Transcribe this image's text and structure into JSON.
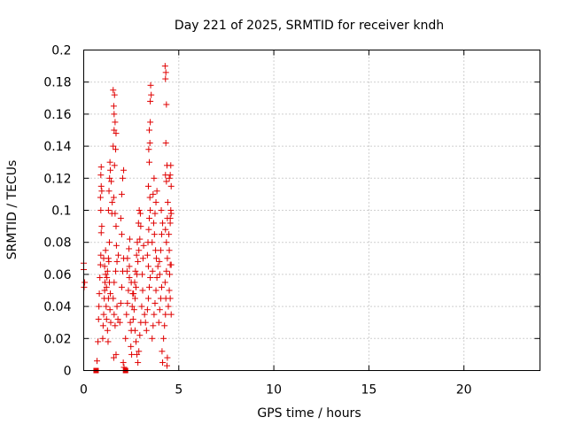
{
  "chart_data": {
    "type": "scatter",
    "title": "Day 221 of 2025, SRMTID for receiver kndh",
    "xlabel": "GPS time / hours",
    "ylabel": "SRMTID / TECUs",
    "xlim": [
      0,
      24
    ],
    "ylim": [
      0,
      0.2
    ],
    "xticks": [
      0,
      5,
      10,
      15,
      20
    ],
    "yticks": [
      0,
      0.02,
      0.04,
      0.06,
      0.08,
      0.1,
      0.12,
      0.14,
      0.16,
      0.18,
      0.2
    ],
    "grid": true,
    "marker_color": "#e00000",
    "series": [
      {
        "marker": "plus",
        "points": [
          [
            0.0,
            0.067
          ],
          [
            0.0,
            0.063
          ],
          [
            0.05,
            0.055
          ],
          [
            0.02,
            0.052
          ],
          [
            0.7,
            0.006
          ],
          [
            0.75,
            0.018
          ],
          [
            0.78,
            0.032
          ],
          [
            0.8,
            0.04
          ],
          [
            0.82,
            0.048
          ],
          [
            0.85,
            0.058
          ],
          [
            0.88,
            0.066
          ],
          [
            0.9,
            0.072
          ],
          [
            0.92,
            0.086
          ],
          [
            0.95,
            0.09
          ],
          [
            0.9,
            0.1
          ],
          [
            0.88,
            0.108
          ],
          [
            0.92,
            0.115
          ],
          [
            0.9,
            0.122
          ],
          [
            0.92,
            0.127
          ],
          [
            0.95,
            0.112
          ],
          [
            1.0,
            0.02
          ],
          [
            1.02,
            0.028
          ],
          [
            1.05,
            0.035
          ],
          [
            1.08,
            0.045
          ],
          [
            1.1,
            0.05
          ],
          [
            1.12,
            0.055
          ],
          [
            1.15,
            0.06
          ],
          [
            1.1,
            0.065
          ],
          [
            1.05,
            0.07
          ],
          [
            1.15,
            0.075
          ],
          [
            1.2,
            0.052
          ],
          [
            1.22,
            0.058
          ],
          [
            1.25,
            0.062
          ],
          [
            1.18,
            0.04
          ],
          [
            1.2,
            0.032
          ],
          [
            1.25,
            0.025
          ],
          [
            1.28,
            0.018
          ],
          [
            1.3,
            0.045
          ],
          [
            1.3,
            0.07
          ],
          [
            1.35,
            0.08
          ],
          [
            1.32,
            0.068
          ],
          [
            1.35,
            0.055
          ],
          [
            1.4,
            0.048
          ],
          [
            1.38,
            0.038
          ],
          [
            1.42,
            0.03
          ],
          [
            1.3,
            0.1
          ],
          [
            1.33,
            0.112
          ],
          [
            1.36,
            0.12
          ],
          [
            1.38,
            0.13
          ],
          [
            1.4,
            0.125
          ],
          [
            1.45,
            0.118
          ],
          [
            1.5,
            0.105
          ],
          [
            1.48,
            0.098
          ],
          [
            1.55,
            0.14
          ],
          [
            1.6,
            0.15
          ],
          [
            1.58,
            0.165
          ],
          [
            1.62,
            0.172
          ],
          [
            1.55,
            0.175
          ],
          [
            1.6,
            0.16
          ],
          [
            1.65,
            0.155
          ],
          [
            1.7,
            0.148
          ],
          [
            1.68,
            0.138
          ],
          [
            1.62,
            0.128
          ],
          [
            1.58,
            0.108
          ],
          [
            1.65,
            0.098
          ],
          [
            1.7,
            0.09
          ],
          [
            1.72,
            0.078
          ],
          [
            1.75,
            0.068
          ],
          [
            1.68,
            0.062
          ],
          [
            1.6,
            0.055
          ],
          [
            1.55,
            0.045
          ],
          [
            1.6,
            0.035
          ],
          [
            1.65,
            0.028
          ],
          [
            1.7,
            0.01
          ],
          [
            1.58,
            0.008
          ],
          [
            1.75,
            0.04
          ],
          [
            1.8,
            0.032
          ],
          [
            1.82,
            0.072
          ],
          [
            1.9,
            0.03
          ],
          [
            1.95,
            0.042
          ],
          [
            2.0,
            0.052
          ],
          [
            2.05,
            0.062
          ],
          [
            2.1,
            0.07
          ],
          [
            2.0,
            0.085
          ],
          [
            1.95,
            0.095
          ],
          [
            2.0,
            0.11
          ],
          [
            2.05,
            0.12
          ],
          [
            2.1,
            0.125
          ],
          [
            2.08,
            0.005
          ],
          [
            2.12,
            0.002
          ],
          [
            2.2,
            0.02
          ],
          [
            2.25,
            0.035
          ],
          [
            2.3,
            0.042
          ],
          [
            2.35,
            0.05
          ],
          [
            2.4,
            0.058
          ],
          [
            2.28,
            0.062
          ],
          [
            2.3,
            0.07
          ],
          [
            2.38,
            0.076
          ],
          [
            2.42,
            0.082
          ],
          [
            2.45,
            0.03
          ],
          [
            2.5,
            0.025
          ],
          [
            2.48,
            0.015
          ],
          [
            2.52,
            0.01
          ],
          [
            2.55,
            0.04
          ],
          [
            2.58,
            0.048
          ],
          [
            2.5,
            0.055
          ],
          [
            2.4,
            0.065
          ],
          [
            2.6,
            0.032
          ],
          [
            2.65,
            0.038
          ],
          [
            2.7,
            0.045
          ],
          [
            2.75,
            0.052
          ],
          [
            2.8,
            0.06
          ],
          [
            2.85,
            0.068
          ],
          [
            2.9,
            0.075
          ],
          [
            2.95,
            0.082
          ],
          [
            3.0,
            0.09
          ],
          [
            2.98,
            0.098
          ],
          [
            2.92,
            0.1
          ],
          [
            2.88,
            0.092
          ],
          [
            2.82,
            0.08
          ],
          [
            2.78,
            0.072
          ],
          [
            2.72,
            0.062
          ],
          [
            2.68,
            0.055
          ],
          [
            2.62,
            0.048
          ],
          [
            2.7,
            0.025
          ],
          [
            2.75,
            0.018
          ],
          [
            2.8,
            0.01
          ],
          [
            2.85,
            0.005
          ],
          [
            2.9,
            0.012
          ],
          [
            2.95,
            0.022
          ],
          [
            3.0,
            0.03
          ],
          [
            3.05,
            0.04
          ],
          [
            3.1,
            0.05
          ],
          [
            3.08,
            0.06
          ],
          [
            3.12,
            0.07
          ],
          [
            3.15,
            0.078
          ],
          [
            3.2,
            0.035
          ],
          [
            3.25,
            0.03
          ],
          [
            3.3,
            0.025
          ],
          [
            3.35,
            0.038
          ],
          [
            3.4,
            0.045
          ],
          [
            3.45,
            0.052
          ],
          [
            3.5,
            0.058
          ],
          [
            3.4,
            0.065
          ],
          [
            3.35,
            0.072
          ],
          [
            3.38,
            0.08
          ],
          [
            3.42,
            0.088
          ],
          [
            3.45,
            0.095
          ],
          [
            3.5,
            0.1
          ],
          [
            3.48,
            0.108
          ],
          [
            3.4,
            0.115
          ],
          [
            3.45,
            0.13
          ],
          [
            3.42,
            0.138
          ],
          [
            3.48,
            0.142
          ],
          [
            3.5,
            0.155
          ],
          [
            3.45,
            0.15
          ],
          [
            3.5,
            0.168
          ],
          [
            3.52,
            0.178
          ],
          [
            3.55,
            0.172
          ],
          [
            3.6,
            0.02
          ],
          [
            3.65,
            0.028
          ],
          [
            3.7,
            0.035
          ],
          [
            3.75,
            0.042
          ],
          [
            3.8,
            0.05
          ],
          [
            3.85,
            0.058
          ],
          [
            3.9,
            0.065
          ],
          [
            3.82,
            0.07
          ],
          [
            3.78,
            0.075
          ],
          [
            3.72,
            0.085
          ],
          [
            3.68,
            0.092
          ],
          [
            3.75,
            0.098
          ],
          [
            3.8,
            0.105
          ],
          [
            3.85,
            0.112
          ],
          [
            3.7,
            0.12
          ],
          [
            3.65,
            0.11
          ],
          [
            3.6,
            0.08
          ],
          [
            3.62,
            0.062
          ],
          [
            3.95,
            0.03
          ],
          [
            4.0,
            0.038
          ],
          [
            4.05,
            0.045
          ],
          [
            4.1,
            0.052
          ],
          [
            4.0,
            0.06
          ],
          [
            3.98,
            0.068
          ],
          [
            4.05,
            0.075
          ],
          [
            4.1,
            0.085
          ],
          [
            4.15,
            0.092
          ],
          [
            4.08,
            0.1
          ],
          [
            4.12,
            0.012
          ],
          [
            4.15,
            0.005
          ],
          [
            4.2,
            0.02
          ],
          [
            4.25,
            0.028
          ],
          [
            4.3,
            0.035
          ],
          [
            4.32,
            0.045
          ],
          [
            4.28,
            0.055
          ],
          [
            4.35,
            0.062
          ],
          [
            4.4,
            0.07
          ],
          [
            4.35,
            0.08
          ],
          [
            4.3,
            0.088
          ],
          [
            4.4,
            0.095
          ],
          [
            4.42,
            0.105
          ],
          [
            4.35,
            0.118
          ],
          [
            4.3,
            0.122
          ],
          [
            4.38,
            0.128
          ],
          [
            4.32,
            0.142
          ],
          [
            4.35,
            0.166
          ],
          [
            4.3,
            0.182
          ],
          [
            4.32,
            0.186
          ],
          [
            4.28,
            0.19
          ],
          [
            4.4,
            0.008
          ],
          [
            4.38,
            0.003
          ],
          [
            4.45,
            0.04
          ],
          [
            4.5,
            0.05
          ],
          [
            4.52,
            0.06
          ],
          [
            4.55,
            0.066
          ],
          [
            4.5,
            0.075
          ],
          [
            4.48,
            0.085
          ],
          [
            4.55,
            0.092
          ],
          [
            4.6,
            0.098
          ],
          [
            4.58,
            0.1
          ],
          [
            4.55,
            0.095
          ],
          [
            4.6,
            0.115
          ],
          [
            4.55,
            0.122
          ],
          [
            4.58,
            0.128
          ],
          [
            4.5,
            0.12
          ],
          [
            4.6,
            0.066
          ],
          [
            4.55,
            0.045
          ],
          [
            4.6,
            0.035
          ]
        ]
      },
      {
        "marker": "square",
        "points": [
          [
            0.65,
            0.0
          ],
          [
            2.2,
            0.0
          ]
        ]
      }
    ]
  }
}
